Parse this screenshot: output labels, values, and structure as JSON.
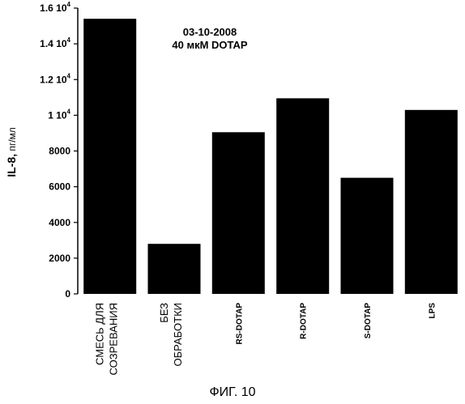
{
  "chart_data": {
    "type": "bar",
    "annotation": [
      "03-10-2008",
      "40 мкМ DOTAP"
    ],
    "ylabel_bold": "IL-8,",
    "ylabel_unit": " пг/мл",
    "ylim": [
      0,
      16000
    ],
    "yticks": [
      {
        "value": 0,
        "label": "0"
      },
      {
        "value": 2000,
        "label": "2000"
      },
      {
        "value": 4000,
        "label": "4000"
      },
      {
        "value": 6000,
        "label": "6000"
      },
      {
        "value": 8000,
        "label": "8000"
      },
      {
        "value": 10000,
        "label": "1 10",
        "exp": "4"
      },
      {
        "value": 12000,
        "label": "1.2 10",
        "exp": "4"
      },
      {
        "value": 14000,
        "label": "1.4 10",
        "exp": "4"
      },
      {
        "value": 16000,
        "label": "1.6 10",
        "exp": "4"
      }
    ],
    "categories": [
      [
        "СМЕСЬ ДЛЯ",
        "СОЗРЕВАНИЯ"
      ],
      [
        "БЕЗ",
        "ОБРАБОТКИ"
      ],
      [
        "RS-DOTAP"
      ],
      [
        "R-DOTAP"
      ],
      [
        "S-DOTAP"
      ],
      [
        "LPS"
      ]
    ],
    "values": [
      15400,
      2800,
      9050,
      10950,
      6500,
      10300
    ],
    "bar_color": "#000000"
  },
  "caption": "ФИГ. 10"
}
